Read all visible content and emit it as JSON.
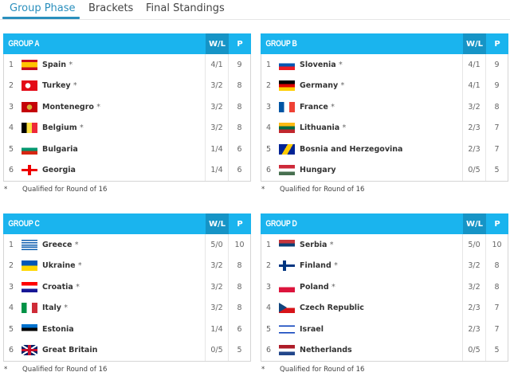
{
  "tabs": [
    {
      "label": "Group Phase",
      "active": true
    },
    {
      "label": "Brackets"
    },
    {
      "label": "Final Standings"
    }
  ],
  "columns": {
    "wl": "W/L",
    "p": "P"
  },
  "note": {
    "star": "*",
    "text": "Qualified for Round of 16"
  },
  "colors": {
    "header": "#1ab4ee",
    "header_dark": "#1694c6",
    "active_tab": "#2a8fbd"
  },
  "groups": [
    {
      "name": "GROUP A",
      "rows": [
        {
          "pos": "1",
          "team": "Spain",
          "q": "*",
          "wl": "4/1",
          "p": "9",
          "flag": "spain"
        },
        {
          "pos": "2",
          "team": "Turkey",
          "q": "*",
          "wl": "3/2",
          "p": "8",
          "flag": "turkey"
        },
        {
          "pos": "3",
          "team": "Montenegro",
          "q": "*",
          "wl": "3/2",
          "p": "8",
          "flag": "montenegro"
        },
        {
          "pos": "4",
          "team": "Belgium",
          "q": "*",
          "wl": "3/2",
          "p": "8",
          "flag": "belgium"
        },
        {
          "pos": "5",
          "team": "Bulgaria",
          "q": "",
          "wl": "1/4",
          "p": "6",
          "flag": "bulgaria"
        },
        {
          "pos": "6",
          "team": "Georgia",
          "q": "",
          "wl": "1/4",
          "p": "6",
          "flag": "georgia"
        }
      ]
    },
    {
      "name": "GROUP B",
      "rows": [
        {
          "pos": "1",
          "team": "Slovenia",
          "q": "*",
          "wl": "4/1",
          "p": "9",
          "flag": "slovenia"
        },
        {
          "pos": "2",
          "team": "Germany",
          "q": "*",
          "wl": "4/1",
          "p": "9",
          "flag": "germany"
        },
        {
          "pos": "3",
          "team": "France",
          "q": "*",
          "wl": "3/2",
          "p": "8",
          "flag": "france"
        },
        {
          "pos": "4",
          "team": "Lithuania",
          "q": "*",
          "wl": "2/3",
          "p": "7",
          "flag": "lithuania"
        },
        {
          "pos": "5",
          "team": "Bosnia and Herzegovina",
          "q": "",
          "wl": "2/3",
          "p": "7",
          "flag": "bosnia"
        },
        {
          "pos": "6",
          "team": "Hungary",
          "q": "",
          "wl": "0/5",
          "p": "5",
          "flag": "hungary"
        }
      ]
    },
    {
      "name": "GROUP C",
      "rows": [
        {
          "pos": "1",
          "team": "Greece",
          "q": "*",
          "wl": "5/0",
          "p": "10",
          "flag": "greece"
        },
        {
          "pos": "2",
          "team": "Ukraine",
          "q": "*",
          "wl": "3/2",
          "p": "8",
          "flag": "ukraine"
        },
        {
          "pos": "3",
          "team": "Croatia",
          "q": "*",
          "wl": "3/2",
          "p": "8",
          "flag": "croatia"
        },
        {
          "pos": "4",
          "team": "Italy",
          "q": "*",
          "wl": "3/2",
          "p": "8",
          "flag": "italy"
        },
        {
          "pos": "5",
          "team": "Estonia",
          "q": "",
          "wl": "1/4",
          "p": "6",
          "flag": "estonia"
        },
        {
          "pos": "6",
          "team": "Great Britain",
          "q": "",
          "wl": "0/5",
          "p": "5",
          "flag": "great-britain"
        }
      ]
    },
    {
      "name": "GROUP D",
      "rows": [
        {
          "pos": "1",
          "team": "Serbia",
          "q": "*",
          "wl": "5/0",
          "p": "10",
          "flag": "serbia"
        },
        {
          "pos": "2",
          "team": "Finland",
          "q": "*",
          "wl": "3/2",
          "p": "8",
          "flag": "finland"
        },
        {
          "pos": "3",
          "team": "Poland",
          "q": "*",
          "wl": "3/2",
          "p": "8",
          "flag": "poland"
        },
        {
          "pos": "4",
          "team": "Czech Republic",
          "q": "",
          "wl": "2/3",
          "p": "7",
          "flag": "czech-republic"
        },
        {
          "pos": "5",
          "team": "Israel",
          "q": "",
          "wl": "2/3",
          "p": "7",
          "flag": "israel"
        },
        {
          "pos": "6",
          "team": "Netherlands",
          "q": "",
          "wl": "0/5",
          "p": "5",
          "flag": "netherlands"
        }
      ]
    }
  ]
}
